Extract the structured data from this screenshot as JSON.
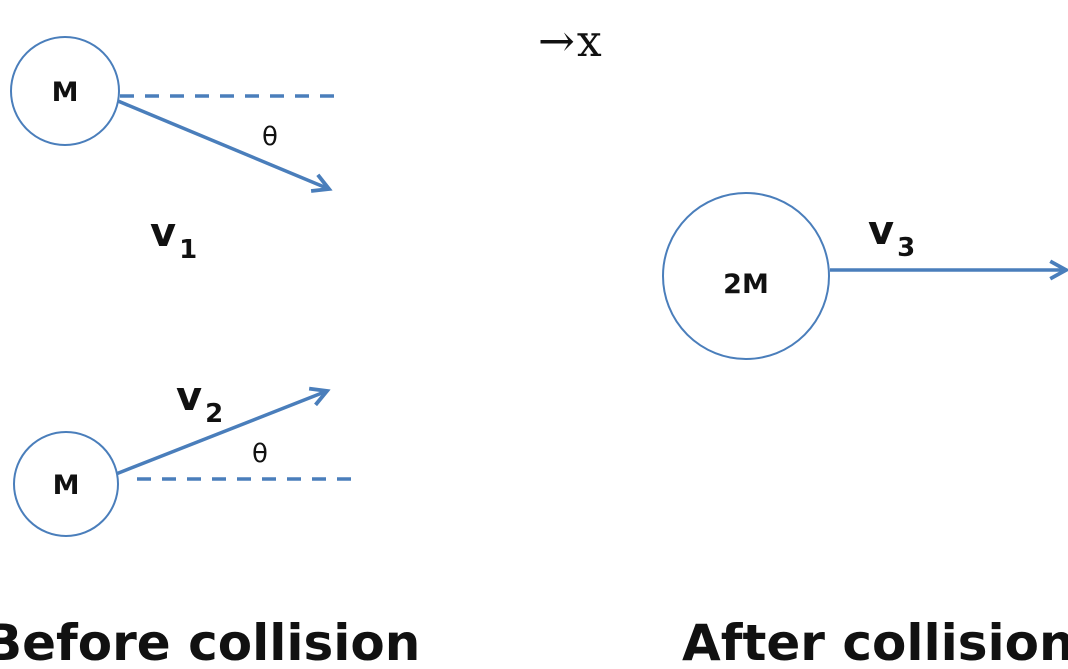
{
  "axis": {
    "arrow": "→",
    "label": "x"
  },
  "before": {
    "ball_top": {
      "label": "M"
    },
    "ball_bottom": {
      "label": "M"
    },
    "v1": {
      "symbol": "v",
      "subscript": "1"
    },
    "v2": {
      "symbol": "v",
      "subscript": "2"
    },
    "theta_top": "θ",
    "theta_bottom": "θ",
    "caption": "Before collision"
  },
  "after": {
    "ball": {
      "label": "2M"
    },
    "v3": {
      "symbol": "v",
      "subscript": "3"
    },
    "caption": "After collision"
  },
  "colors": {
    "accent": "#4a7ebb",
    "text": "#111111"
  }
}
